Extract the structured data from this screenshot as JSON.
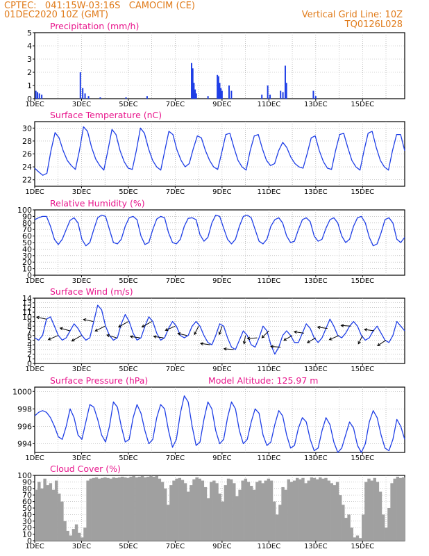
{
  "header": {
    "left_line1": "CPTEC:   041:15W-03:16S   CAMOCIM (CE)",
    "left_line2": "01DEC2020 10Z (GMT)",
    "right_line1": "Vertical Grid Line: 10Z",
    "right_line2": "TQ0126L028"
  },
  "colors": {
    "header": "#e07b1a",
    "title": "#e8168c",
    "line": "#1e3ee6",
    "cloud": "#a0a0a0",
    "arrow": "#000000",
    "axis": "#000000"
  },
  "chart_data": [
    {
      "id": "precip",
      "type": "bar",
      "title": "Precipitation (mm/h)",
      "xlabel": "",
      "ylabel": "",
      "x_ticks": [
        "1DEC",
        "3DEC",
        "5DEC",
        "7DEC",
        "9DEC",
        "11DEC",
        "13DEC",
        "15DEC"
      ],
      "ylim": [
        0,
        5
      ],
      "y_ticks": [
        0,
        1,
        2,
        3,
        4,
        5
      ],
      "bars": [
        {
          "day": 0.05,
          "v": 0.6
        },
        {
          "day": 0.12,
          "v": 0.5
        },
        {
          "day": 0.2,
          "v": 0.4
        },
        {
          "day": 0.3,
          "v": 0.3
        },
        {
          "day": 1.95,
          "v": 2.0
        },
        {
          "day": 2.05,
          "v": 0.8
        },
        {
          "day": 2.15,
          "v": 0.4
        },
        {
          "day": 2.3,
          "v": 0.2
        },
        {
          "day": 2.8,
          "v": 0.1
        },
        {
          "day": 3.9,
          "v": 0.1
        },
        {
          "day": 4.8,
          "v": 0.2
        },
        {
          "day": 6.7,
          "v": 2.7
        },
        {
          "day": 6.75,
          "v": 2.3
        },
        {
          "day": 6.8,
          "v": 1.2
        },
        {
          "day": 6.85,
          "v": 0.7
        },
        {
          "day": 6.9,
          "v": 0.4
        },
        {
          "day": 7.4,
          "v": 0.2
        },
        {
          "day": 7.8,
          "v": 1.8
        },
        {
          "day": 7.85,
          "v": 1.7
        },
        {
          "day": 7.9,
          "v": 1.2
        },
        {
          "day": 7.95,
          "v": 0.8
        },
        {
          "day": 8.0,
          "v": 0.6
        },
        {
          "day": 8.3,
          "v": 1.0
        },
        {
          "day": 8.4,
          "v": 0.6
        },
        {
          "day": 9.7,
          "v": 0.3
        },
        {
          "day": 9.95,
          "v": 1.0
        },
        {
          "day": 10.05,
          "v": 0.3
        },
        {
          "day": 10.5,
          "v": 0.6
        },
        {
          "day": 10.6,
          "v": 0.5
        },
        {
          "day": 10.7,
          "v": 2.5
        },
        {
          "day": 10.75,
          "v": 1.2
        },
        {
          "day": 11.9,
          "v": 0.6
        },
        {
          "day": 12.0,
          "v": 0.2
        }
      ]
    },
    {
      "id": "temp",
      "type": "line",
      "title": "Surface Temperature (nC)",
      "xlabel": "",
      "ylabel": "",
      "x_ticks": [
        "1DEC",
        "3DEC",
        "5DEC",
        "7DEC",
        "9DEC",
        "11DEC",
        "13DEC",
        "15DEC"
      ],
      "ylim": [
        21,
        31
      ],
      "y_ticks": [
        22,
        24,
        26,
        28,
        30
      ],
      "series": [
        {
          "values": [
            23.8,
            23.2,
            22.7,
            23.0,
            26.5,
            29.3,
            28.5,
            26.5,
            25.0,
            24.2,
            23.6,
            26.5,
            30.2,
            29.5,
            27.0,
            25.2,
            24.2,
            23.5,
            26.5,
            29.8,
            29.0,
            26.5,
            24.8,
            23.8,
            23.6,
            26.5,
            30.0,
            29.2,
            26.8,
            25.0,
            24.0,
            23.5,
            26.5,
            29.5,
            29.0,
            26.6,
            25.0,
            24.0,
            24.5,
            26.8,
            28.8,
            28.5,
            26.5,
            25.0,
            24.0,
            23.6,
            26.2,
            29.0,
            29.2,
            27.0,
            25.0,
            24.0,
            23.5,
            26.5,
            28.8,
            29.0,
            26.8,
            25.0,
            24.2,
            24.5,
            26.5,
            27.8,
            27.0,
            25.5,
            24.5,
            24.0,
            23.8,
            26.0,
            28.5,
            28.8,
            26.5,
            24.8,
            23.8,
            23.6,
            26.5,
            29.0,
            29.2,
            27.0,
            25.0,
            24.0,
            23.5,
            26.5,
            29.2,
            29.5,
            27.0,
            25.0,
            24.0,
            23.5,
            26.5,
            29.0,
            29.0,
            26.5
          ]
        }
      ]
    },
    {
      "id": "rh",
      "type": "line",
      "title": "Relative Humidity (%)",
      "xlabel": "",
      "ylabel": "",
      "x_ticks": [
        "1DEC",
        "3DEC",
        "5DEC",
        "7DEC",
        "9DEC",
        "11DEC",
        "13DEC",
        "15DEC"
      ],
      "ylim": [
        0,
        100
      ],
      "y_ticks": [
        0,
        10,
        20,
        30,
        40,
        50,
        60,
        70,
        80,
        90,
        100
      ],
      "series": [
        {
          "values": [
            85,
            88,
            90,
            90,
            75,
            55,
            47,
            55,
            70,
            84,
            88,
            80,
            55,
            45,
            50,
            70,
            88,
            92,
            90,
            70,
            50,
            48,
            55,
            75,
            88,
            90,
            85,
            60,
            47,
            50,
            70,
            86,
            90,
            88,
            65,
            50,
            48,
            55,
            75,
            87,
            88,
            85,
            62,
            52,
            58,
            80,
            92,
            90,
            72,
            55,
            48,
            55,
            75,
            90,
            92,
            88,
            70,
            52,
            48,
            55,
            75,
            85,
            88,
            80,
            60,
            50,
            52,
            70,
            85,
            88,
            82,
            60,
            52,
            55,
            72,
            85,
            88,
            80,
            60,
            50,
            55,
            75,
            88,
            90,
            80,
            58,
            45,
            48,
            65,
            85,
            88,
            80,
            55,
            50,
            58
          ]
        }
      ]
    },
    {
      "id": "wind",
      "type": "line",
      "title": "Surface Wind (m/s)",
      "xlabel": "",
      "ylabel": "",
      "x_ticks": [
        "1DEC",
        "3DEC",
        "5DEC",
        "7DEC",
        "9DEC",
        "11DEC",
        "13DEC",
        "15DEC"
      ],
      "ylim": [
        0,
        14
      ],
      "y_ticks": [
        0,
        1,
        2,
        3,
        4,
        5,
        6,
        7,
        8,
        9,
        10,
        11,
        12,
        13,
        14
      ],
      "series": [
        {
          "values": [
            5.5,
            5.0,
            6.0,
            9.5,
            10.0,
            8.0,
            6.0,
            5.0,
            5.5,
            7.0,
            8.5,
            7.5,
            6.0,
            5.0,
            5.5,
            9.0,
            12.5,
            11.5,
            8.0,
            6.0,
            5.0,
            5.5,
            8.5,
            10.5,
            9.0,
            6.5,
            5.0,
            5.5,
            8.0,
            10.0,
            9.0,
            6.5,
            5.0,
            5.5,
            7.5,
            9.0,
            8.0,
            6.0,
            5.5,
            6.0,
            8.0,
            9.0,
            8.0,
            6.0,
            4.5,
            4.0,
            6.0,
            8.5,
            8.0,
            5.5,
            3.5,
            3.0,
            5.0,
            7.0,
            6.0,
            4.0,
            3.5,
            5.5,
            8.0,
            7.0,
            4.0,
            2.0,
            3.5,
            6.0,
            7.0,
            6.0,
            4.5,
            4.5,
            6.5,
            8.5,
            7.5,
            5.5,
            4.5,
            5.5,
            7.5,
            9.5,
            8.0,
            6.0,
            5.5,
            6.5,
            8.0,
            9.0,
            8.0,
            6.0,
            5.0,
            5.5,
            7.0,
            8.0,
            6.5,
            5.0,
            4.5,
            6.0,
            9.0,
            8.0,
            7.0
          ]
        }
      ],
      "arrows": [
        {
          "day": 0.5,
          "dx": -14,
          "dy": -3
        },
        {
          "day": 1.0,
          "dx": -14,
          "dy": 6
        },
        {
          "day": 1.5,
          "dx": -14,
          "dy": -4
        },
        {
          "day": 2.0,
          "dx": -14,
          "dy": 8
        },
        {
          "day": 2.5,
          "dx": -14,
          "dy": -3
        },
        {
          "day": 3.0,
          "dx": -14,
          "dy": 7
        },
        {
          "day": 3.5,
          "dx": -14,
          "dy": -4
        },
        {
          "day": 4.0,
          "dx": -14,
          "dy": 8
        },
        {
          "day": 4.5,
          "dx": -14,
          "dy": -2
        },
        {
          "day": 5.0,
          "dx": -14,
          "dy": 8
        },
        {
          "day": 5.5,
          "dx": -14,
          "dy": -2
        },
        {
          "day": 6.0,
          "dx": -14,
          "dy": 6
        },
        {
          "day": 6.5,
          "dx": -13,
          "dy": -3
        },
        {
          "day": 7.0,
          "dx": -6,
          "dy": 12
        },
        {
          "day": 7.5,
          "dx": -14,
          "dy": -2
        },
        {
          "day": 8.0,
          "dx": -4,
          "dy": 12
        },
        {
          "day": 8.5,
          "dx": -14,
          "dy": -1
        },
        {
          "day": 9.0,
          "dx": -2,
          "dy": 12
        },
        {
          "day": 9.5,
          "dx": -14,
          "dy": 1
        },
        {
          "day": 10.0,
          "dx": -10,
          "dy": 10
        },
        {
          "day": 10.5,
          "dx": -14,
          "dy": -1
        },
        {
          "day": 11.0,
          "dx": -12,
          "dy": 7
        },
        {
          "day": 11.5,
          "dx": -14,
          "dy": -2
        },
        {
          "day": 12.0,
          "dx": -12,
          "dy": 7
        },
        {
          "day": 12.5,
          "dx": -14,
          "dy": -2
        },
        {
          "day": 13.0,
          "dx": -14,
          "dy": 6
        },
        {
          "day": 13.5,
          "dx": -14,
          "dy": -1
        },
        {
          "day": 14.0,
          "dx": -6,
          "dy": 12
        },
        {
          "day": 14.5,
          "dx": -14,
          "dy": -2
        },
        {
          "day": 15.0,
          "dx": -12,
          "dy": 8
        }
      ]
    },
    {
      "id": "pres",
      "type": "line",
      "title": "Surface Pressure (hPa)",
      "annotation": "Model Altitude: 125.97 m",
      "xlabel": "",
      "ylabel": "",
      "x_ticks": [
        "1DEC",
        "3DEC",
        "5DEC",
        "7DEC",
        "9DEC",
        "11DEC",
        "13DEC",
        "15DEC"
      ],
      "ylim": [
        993,
        1000.5
      ],
      "y_ticks": [
        994,
        996,
        998,
        1000
      ],
      "series": [
        {
          "values": [
            997.2,
            997.6,
            997.8,
            997.6,
            997.0,
            996.0,
            994.8,
            994.5,
            996.0,
            998.0,
            997.0,
            995.0,
            994.5,
            996.5,
            998.5,
            998.2,
            996.8,
            995.0,
            994.2,
            996.0,
            998.8,
            998.2,
            996.0,
            994.2,
            994.5,
            997.0,
            998.5,
            997.5,
            995.5,
            994.0,
            994.5,
            997.0,
            998.5,
            998.0,
            995.5,
            993.6,
            994.5,
            997.5,
            999.5,
            998.8,
            996.0,
            993.8,
            994.2,
            996.8,
            998.8,
            998.0,
            995.5,
            994.0,
            994.5,
            997.0,
            998.8,
            998.0,
            995.5,
            994.0,
            994.5,
            996.5,
            998.0,
            997.5,
            995.0,
            993.8,
            994.2,
            996.2,
            997.8,
            997.2,
            995.0,
            993.5,
            993.8,
            995.8,
            997.0,
            996.5,
            994.5,
            993.2,
            993.5,
            995.5,
            997.0,
            996.2,
            994.2,
            993.0,
            993.5,
            995.0,
            996.5,
            995.8,
            993.8,
            993.0,
            994.0,
            996.5,
            997.8,
            997.0,
            995.0,
            993.5,
            993.2,
            994.5,
            996.8,
            996.0,
            994.5
          ]
        }
      ]
    },
    {
      "id": "cloud",
      "type": "area",
      "title": "Cloud Cover (%)",
      "xlabel": "",
      "ylabel": "",
      "x_ticks": [
        "1DEC",
        "3DEC",
        "5DEC",
        "7DEC",
        "9DEC",
        "11DEC",
        "13DEC",
        "15DEC"
      ],
      "ylim": [
        0,
        100
      ],
      "y_ticks": [
        0,
        10,
        20,
        30,
        40,
        50,
        60,
        70,
        80,
        90,
        100
      ],
      "series": [
        {
          "values": [
            78,
            90,
            80,
            95,
            85,
            88,
            78,
            92,
            72,
            60,
            30,
            15,
            8,
            18,
            25,
            12,
            5,
            20,
            92,
            95,
            96,
            97,
            95,
            96,
            97,
            96,
            95,
            97,
            96,
            97,
            98,
            97,
            96,
            98,
            99,
            97,
            98,
            99,
            97,
            98,
            99,
            98,
            99,
            95,
            90,
            80,
            55,
            85,
            92,
            95,
            96,
            93,
            88,
            75,
            85,
            94,
            97,
            95,
            92,
            82,
            65,
            90,
            92,
            88,
            72,
            60,
            85,
            95,
            94,
            88,
            68,
            78,
            92,
            95,
            90,
            84,
            78,
            90,
            92,
            88,
            92,
            95,
            92,
            60,
            40,
            55,
            82,
            78,
            94,
            90,
            92,
            96,
            94,
            96,
            88,
            92,
            97,
            96,
            94,
            97,
            95,
            96,
            92,
            88,
            85,
            90,
            70,
            55,
            35,
            40,
            20,
            5,
            8,
            4,
            40,
            90,
            95,
            92,
            96,
            90,
            75,
            40,
            20,
            50,
            88,
            95,
            98,
            96,
            97
          ]
        }
      ]
    }
  ]
}
